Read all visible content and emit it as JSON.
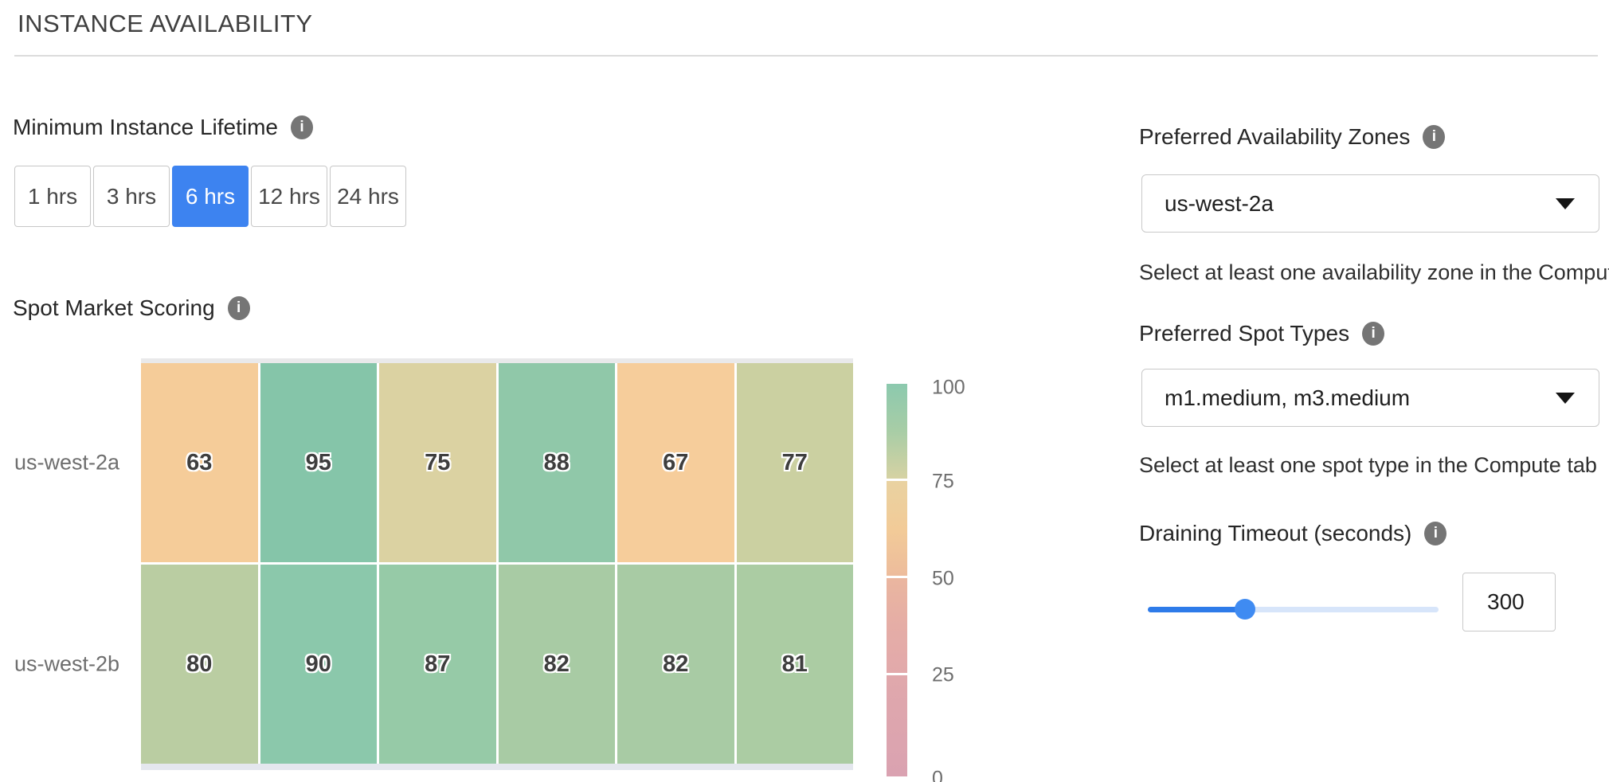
{
  "page": {
    "title": "INSTANCE AVAILABILITY"
  },
  "icons": {
    "info_glyph": "i"
  },
  "colors": {
    "accent_blue": "#3d83f0",
    "slider_fill": "#2e7be9",
    "slider_track": "#d7e5fa",
    "slider_thumb": "#3f8bf2",
    "info_icon_bg": "#757575"
  },
  "lifetime": {
    "label": "Minimum Instance Lifetime",
    "options": [
      {
        "label": "1 hrs",
        "selected": false
      },
      {
        "label": "3 hrs",
        "selected": false
      },
      {
        "label": "6 hrs",
        "selected": true
      },
      {
        "label": "12 hrs",
        "selected": false
      },
      {
        "label": "24 hrs",
        "selected": false
      }
    ]
  },
  "chart_data": {
    "type": "heatmap",
    "title": "Spot Market Scoring",
    "rows": [
      "us-west-2a",
      "us-west-2b"
    ],
    "columns": 6,
    "value_range": [
      0,
      100
    ],
    "series": [
      {
        "name": "us-west-2a",
        "values": [
          63,
          95,
          75,
          88,
          67,
          77
        ],
        "cell_colors": [
          "#f5cc99",
          "#85c5a9",
          "#dbd2a2",
          "#90c8a9",
          "#f6cd9b",
          "#cbd0a1"
        ]
      },
      {
        "name": "us-west-2b",
        "values": [
          80,
          90,
          87,
          82,
          82,
          81
        ],
        "cell_colors": [
          "#bacda2",
          "#8bc8ab",
          "#96caa7",
          "#a8cba4",
          "#a8cba4",
          "#abcca3"
        ]
      }
    ],
    "colorbar": {
      "ticks": [
        "100",
        "75",
        "50",
        "25",
        "0"
      ],
      "segments": [
        [
          "#8cc9ae",
          "#a8cda6",
          "#d6d2a3"
        ],
        [
          "#e9d2a1",
          "#f2cb98",
          "#edbc9c"
        ],
        [
          "#eab69f",
          "#e5ada6",
          "#e2a9ab"
        ],
        [
          "#e0a8ac",
          "#dda5ae",
          "#daa2b1"
        ]
      ]
    }
  },
  "right_panel": {
    "availability_zones": {
      "label": "Preferred Availability Zones",
      "value": "us-west-2a",
      "helper": "Select at least one availability zone in the Compute tab"
    },
    "spot_types": {
      "label": "Preferred Spot Types",
      "value": "m1.medium, m3.medium",
      "helper": "Select at least one spot type in the Compute tab"
    },
    "draining_timeout": {
      "label": "Draining Timeout (seconds)",
      "value": "300"
    }
  }
}
